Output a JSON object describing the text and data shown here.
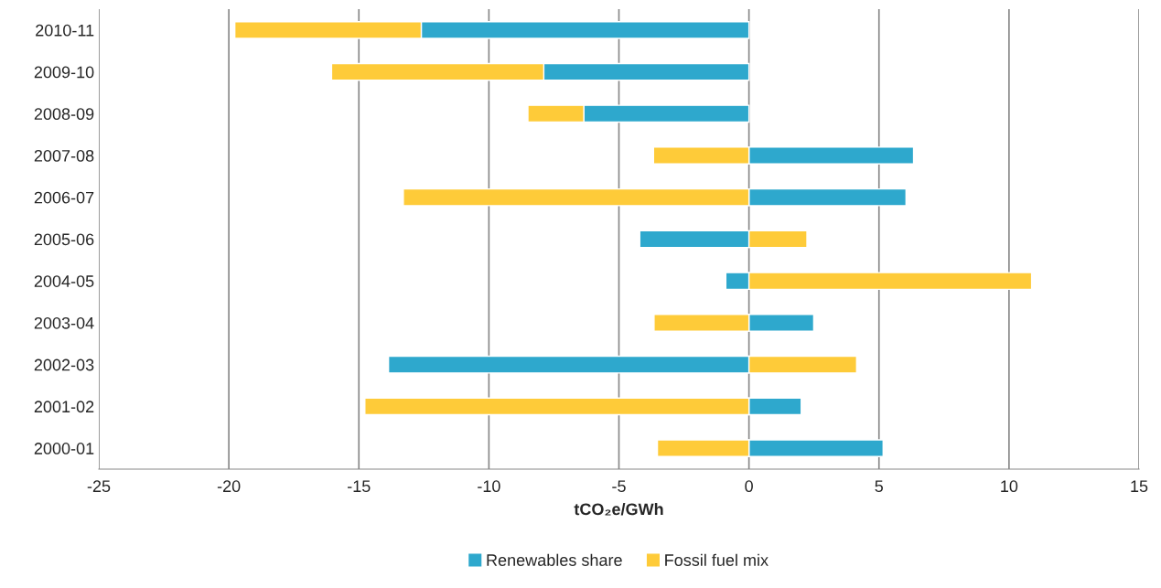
{
  "chart_data": {
    "type": "bar",
    "orientation": "horizontal",
    "stacked": true,
    "categories": [
      "2010-11",
      "2009-10",
      "2008-09",
      "2007-08",
      "2006-07",
      "2005-06",
      "2004-05",
      "2003-04",
      "2002-03",
      "2001-02",
      "2000-01"
    ],
    "series": [
      {
        "name": "Renewables share",
        "color": "#2ea8cd",
        "values": [
          -12.6,
          -7.89,
          -6.35,
          6.33,
          6.04,
          -4.2,
          -0.89,
          2.49,
          -13.86,
          2.01,
          5.16
        ]
      },
      {
        "name": "Fossil fuel mix",
        "color": "#fecb39",
        "values": [
          -7.17,
          -8.16,
          -2.15,
          -3.67,
          -13.29,
          2.23,
          10.87,
          -3.65,
          4.14,
          -14.77,
          -3.52
        ]
      }
    ],
    "xlabel": "tCO₂e/GWh",
    "xlim": [
      -25,
      15
    ],
    "xticks": [
      -25,
      -20,
      -15,
      -10,
      -5,
      0,
      5,
      10,
      15
    ],
    "grid": "x",
    "legend": "bottom"
  }
}
